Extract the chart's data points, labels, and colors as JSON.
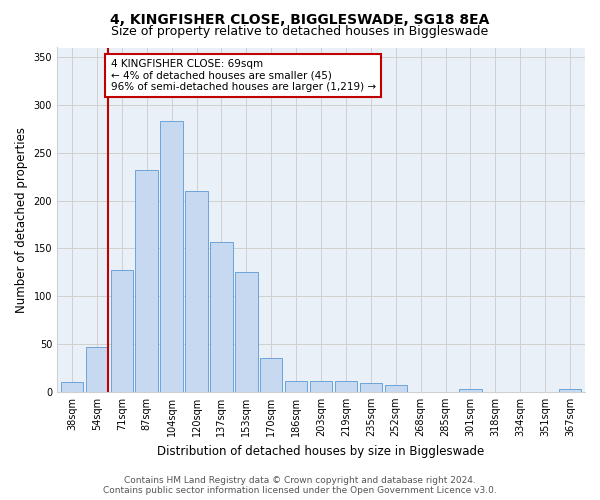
{
  "title1": "4, KINGFISHER CLOSE, BIGGLESWADE, SG18 8EA",
  "title2": "Size of property relative to detached houses in Biggleswade",
  "xlabel": "Distribution of detached houses by size in Biggleswade",
  "ylabel": "Number of detached properties",
  "categories": [
    "38sqm",
    "54sqm",
    "71sqm",
    "87sqm",
    "104sqm",
    "120sqm",
    "137sqm",
    "153sqm",
    "170sqm",
    "186sqm",
    "203sqm",
    "219sqm",
    "235sqm",
    "252sqm",
    "268sqm",
    "285sqm",
    "301sqm",
    "318sqm",
    "334sqm",
    "351sqm",
    "367sqm"
  ],
  "bar_heights": [
    10,
    47,
    127,
    232,
    283,
    210,
    157,
    125,
    35,
    11,
    11,
    11,
    9,
    7,
    0,
    0,
    3,
    0,
    0,
    0,
    3
  ],
  "bar_color": "#c6d9f1",
  "bar_edge_color": "#5b9bd5",
  "vline_color": "#c00000",
  "annotation_line1": "4 KINGFISHER CLOSE: 69sqm",
  "annotation_line2": "← 4% of detached houses are smaller (45)",
  "annotation_line3": "96% of semi-detached houses are larger (1,219) →",
  "annotation_box_color": "#ffffff",
  "annotation_edge_color": "#c00000",
  "ylim": [
    0,
    360
  ],
  "yticks": [
    0,
    50,
    100,
    150,
    200,
    250,
    300,
    350
  ],
  "grid_color": "#d0d0d0",
  "bg_color": "#eaf0f8",
  "footer1": "Contains HM Land Registry data © Crown copyright and database right 2024.",
  "footer2": "Contains public sector information licensed under the Open Government Licence v3.0.",
  "title_fontsize": 10,
  "subtitle_fontsize": 9,
  "xlabel_fontsize": 8.5,
  "ylabel_fontsize": 8.5,
  "tick_fontsize": 7,
  "annotation_fontsize": 7.5,
  "footer_fontsize": 6.5
}
